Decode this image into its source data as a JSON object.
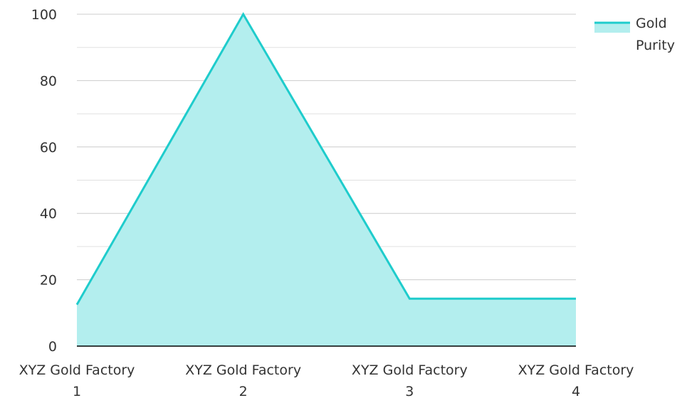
{
  "chart_data": {
    "type": "area",
    "categories": [
      [
        "XYZ Gold Factory",
        "1"
      ],
      [
        "XYZ Gold Factory",
        "2"
      ],
      [
        "XYZ Gold Factory",
        "3"
      ],
      [
        "XYZ Gold Factory",
        "4"
      ]
    ],
    "series": [
      {
        "name": [
          "Gold",
          "Purity"
        ],
        "values": [
          12.5,
          100,
          14.3,
          14.3
        ],
        "line_color": "#1fcccc",
        "fill_color": "#b3eeee"
      }
    ],
    "ylim": [
      0,
      100
    ],
    "y_ticks": [
      "0",
      "20",
      "40",
      "60",
      "80",
      "100"
    ],
    "grid": true,
    "grid_color": "#cccccc",
    "axis_color": "#000000",
    "legend_position": "top-right"
  }
}
